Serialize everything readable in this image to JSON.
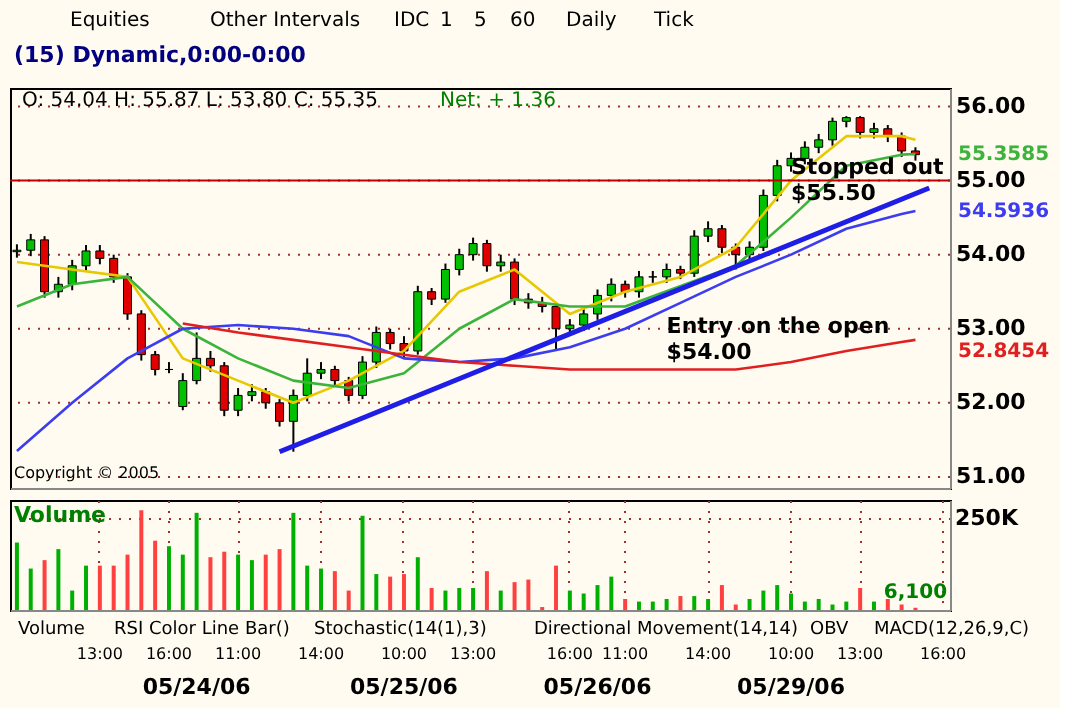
{
  "chart_data": [
    {
      "type": "candlestick",
      "title": "(15) Dynamic,0:00-0:00",
      "categories": [
        null,
        null,
        null,
        null,
        null,
        null,
        null,
        null,
        null,
        null,
        null,
        null,
        null,
        null,
        null,
        null,
        null,
        null,
        null,
        null,
        null,
        null,
        null,
        null,
        null,
        null,
        null,
        null,
        null,
        null,
        null,
        null,
        null,
        null,
        null,
        null,
        null,
        null,
        null,
        null,
        null,
        null,
        null,
        null,
        null,
        null,
        null,
        null,
        null,
        null,
        null,
        null,
        null,
        null,
        null,
        null,
        null,
        null,
        null,
        null,
        null,
        null,
        null,
        null,
        null,
        null,
        null,
        null
      ],
      "ohlc": [
        [
          54.04,
          54.14,
          53.96,
          54.06
        ],
        [
          54.06,
          54.28,
          53.98,
          54.2
        ],
        [
          54.2,
          54.25,
          53.42,
          53.5
        ],
        [
          53.5,
          53.7,
          53.42,
          53.6
        ],
        [
          53.6,
          53.93,
          53.52,
          53.85
        ],
        [
          53.85,
          54.13,
          53.77,
          54.05
        ],
        [
          54.05,
          54.13,
          53.87,
          53.95
        ],
        [
          53.95,
          54.0,
          53.62,
          53.7
        ],
        [
          53.7,
          53.75,
          53.12,
          53.2
        ],
        [
          53.2,
          53.25,
          52.57,
          52.65
        ],
        [
          52.65,
          52.7,
          52.37,
          52.45
        ],
        [
          52.45,
          52.55,
          52.4,
          52.45
        ],
        [
          51.95,
          52.4,
          51.9,
          52.3
        ],
        [
          52.3,
          52.95,
          52.25,
          52.6
        ],
        [
          52.6,
          52.7,
          52.42,
          52.5
        ],
        [
          52.5,
          52.55,
          51.82,
          51.9
        ],
        [
          51.9,
          52.2,
          51.82,
          52.1
        ],
        [
          52.1,
          52.25,
          52.02,
          52.15
        ],
        [
          52.15,
          52.2,
          51.92,
          52.0
        ],
        [
          52.0,
          52.05,
          51.68,
          51.75
        ],
        [
          51.75,
          52.18,
          51.34,
          52.1
        ],
        [
          52.1,
          52.6,
          52.02,
          52.4
        ],
        [
          52.4,
          52.55,
          52.32,
          52.45
        ],
        [
          52.45,
          52.5,
          52.22,
          52.3
        ],
        [
          52.3,
          52.35,
          52.02,
          52.1
        ],
        [
          52.1,
          52.63,
          52.05,
          52.55
        ],
        [
          52.55,
          53.03,
          52.47,
          52.95
        ],
        [
          52.95,
          53.0,
          52.72,
          52.8
        ],
        [
          52.8,
          52.9,
          52.62,
          52.7
        ],
        [
          52.7,
          53.58,
          52.65,
          53.5
        ],
        [
          53.5,
          53.55,
          53.32,
          53.4
        ],
        [
          53.4,
          53.88,
          53.35,
          53.8
        ],
        [
          53.8,
          54.08,
          53.72,
          54.0
        ],
        [
          54.0,
          54.23,
          53.92,
          54.15
        ],
        [
          54.15,
          54.2,
          53.77,
          53.85
        ],
        [
          53.85,
          54.0,
          53.77,
          53.9
        ],
        [
          53.9,
          53.95,
          53.32,
          53.4
        ],
        [
          53.4,
          53.48,
          53.27,
          53.35
        ],
        [
          53.35,
          53.43,
          53.22,
          53.3
        ],
        [
          53.3,
          53.35,
          52.7,
          53.0
        ],
        [
          53.0,
          53.13,
          52.92,
          53.05
        ],
        [
          53.05,
          53.28,
          52.97,
          53.2
        ],
        [
          53.2,
          53.53,
          53.12,
          53.45
        ],
        [
          53.45,
          53.68,
          53.37,
          53.6
        ],
        [
          53.6,
          53.65,
          53.42,
          53.5
        ],
        [
          53.5,
          53.78,
          53.42,
          53.7
        ],
        [
          53.7,
          53.78,
          53.62,
          53.7
        ],
        [
          53.7,
          53.88,
          53.62,
          53.8
        ],
        [
          53.8,
          53.85,
          53.67,
          53.75
        ],
        [
          53.75,
          54.33,
          53.7,
          54.25
        ],
        [
          54.25,
          54.45,
          54.17,
          54.35
        ],
        [
          54.35,
          54.4,
          54.02,
          54.1
        ],
        [
          54.1,
          54.15,
          53.8,
          54.0
        ],
        [
          54.0,
          54.18,
          53.92,
          54.1
        ],
        [
          54.1,
          54.88,
          54.05,
          54.8
        ],
        [
          54.8,
          55.28,
          54.72,
          55.2
        ],
        [
          55.2,
          55.38,
          55.12,
          55.3
        ],
        [
          55.3,
          55.53,
          55.22,
          55.45
        ],
        [
          55.45,
          55.63,
          55.37,
          55.55
        ],
        [
          55.55,
          55.85,
          55.47,
          55.8
        ],
        [
          55.8,
          55.87,
          55.72,
          55.85
        ],
        [
          55.85,
          55.87,
          55.57,
          55.65
        ],
        [
          55.65,
          55.78,
          55.57,
          55.7
        ],
        [
          55.7,
          55.75,
          55.52,
          55.6
        ],
        [
          55.6,
          55.65,
          55.32,
          55.4
        ],
        [
          55.4,
          55.45,
          55.27,
          55.35
        ],
        null,
        null
      ],
      "series": [
        {
          "type": "line",
          "color": "#e8c800",
          "values": [
            53.9,
            null,
            null,
            null,
            53.8,
            null,
            null,
            null,
            53.7,
            null,
            null,
            null,
            52.6,
            null,
            null,
            null,
            52.3,
            null,
            null,
            null,
            52.0,
            null,
            null,
            null,
            52.3,
            null,
            null,
            null,
            52.7,
            null,
            null,
            null,
            53.5,
            null,
            null,
            null,
            53.8,
            null,
            null,
            null,
            53.2,
            null,
            null,
            null,
            53.5,
            null,
            null,
            null,
            53.7,
            null,
            null,
            null,
            54.1,
            null,
            null,
            null,
            55.0,
            null,
            null,
            null,
            55.6,
            null,
            null,
            null,
            55.6,
            55.55,
            null,
            null
          ]
        },
        {
          "type": "line",
          "color": "#3cb43c",
          "values": [
            53.3,
            null,
            null,
            null,
            53.6,
            null,
            null,
            null,
            53.7,
            null,
            null,
            null,
            53.0,
            null,
            null,
            null,
            52.6,
            null,
            null,
            null,
            52.3,
            null,
            null,
            null,
            52.2,
            null,
            null,
            null,
            52.4,
            null,
            null,
            null,
            53.0,
            null,
            null,
            null,
            53.4,
            null,
            null,
            null,
            53.3,
            null,
            null,
            null,
            53.3,
            null,
            null,
            null,
            null,
            null,
            null,
            null,
            53.85,
            null,
            null,
            null,
            54.5,
            null,
            null,
            null,
            55.2,
            null,
            null,
            null,
            55.35,
            55.36,
            null,
            null
          ]
        },
        {
          "type": "line",
          "color": "#3c3cf0",
          "values": [
            51.35,
            null,
            null,
            null,
            52.0,
            null,
            null,
            null,
            52.6,
            null,
            null,
            null,
            53.0,
            null,
            null,
            null,
            53.05,
            null,
            null,
            null,
            53.0,
            null,
            null,
            null,
            52.9,
            null,
            null,
            null,
            52.6,
            null,
            null,
            null,
            52.55,
            null,
            null,
            null,
            52.6,
            null,
            null,
            null,
            52.75,
            null,
            null,
            null,
            53.0,
            null,
            null,
            null,
            53.35,
            null,
            null,
            null,
            53.7,
            null,
            null,
            null,
            54.0,
            null,
            null,
            null,
            54.35,
            null,
            null,
            null,
            54.55,
            54.59,
            null,
            null
          ]
        },
        {
          "type": "line",
          "color": "#e02020",
          "values": [
            null,
            null,
            null,
            null,
            null,
            null,
            null,
            null,
            null,
            null,
            null,
            null,
            53.07,
            null,
            null,
            null,
            52.95,
            null,
            null,
            null,
            52.85,
            null,
            null,
            null,
            52.75,
            null,
            null,
            null,
            52.65,
            null,
            null,
            null,
            52.55,
            null,
            null,
            null,
            52.5,
            null,
            null,
            null,
            52.45,
            null,
            null,
            null,
            52.45,
            null,
            null,
            null,
            52.45,
            null,
            null,
            null,
            52.45,
            null,
            null,
            null,
            52.55,
            null,
            null,
            null,
            52.7,
            null,
            null,
            null,
            52.82,
            52.85,
            null,
            null
          ]
        },
        {
          "type": "line",
          "color": "#1e1ee6",
          "values": [
            null,
            null,
            null,
            null,
            null,
            null,
            null,
            null,
            null,
            null,
            null,
            null,
            null,
            null,
            null,
            null,
            null,
            null,
            null,
            51.34,
            null,
            null,
            null,
            null,
            null,
            null,
            null,
            null,
            null,
            null,
            null,
            null,
            null,
            null,
            null,
            null,
            null,
            null,
            null,
            null,
            null,
            null,
            null,
            null,
            null,
            null,
            null,
            null,
            null,
            null,
            null,
            null,
            null,
            null,
            null,
            null,
            null,
            null,
            null,
            null,
            null,
            null,
            null,
            null,
            null,
            null,
            54.9,
            null
          ]
        }
      ],
      "ylim": [
        50.85,
        56.25
      ],
      "yticks": [
        {
          "value": 51,
          "label": "51.00"
        },
        {
          "value": 52,
          "label": "52.00"
        },
        {
          "value": 53,
          "label": "53.00"
        },
        {
          "value": 54,
          "label": "54.00"
        },
        {
          "value": 55,
          "label": "55.00"
        },
        {
          "value": 56,
          "label": "56.00"
        }
      ],
      "ref_lines": [
        {
          "axis": "y",
          "value": 55.0,
          "color": "#c00000"
        }
      ],
      "grid": true,
      "tick_labels": "y",
      "annotations": [
        "Equities",
        "Other Intervals",
        "IDC",
        "1",
        "5",
        "60",
        "Daily",
        "Tick",
        "O: 54.04  H: 55.87  L: 53.80  C: 55.35",
        "Net: + 1.36",
        "Copyright © 2005",
        {
          "text": "Stopped out\n$55.50",
          "y": 55.5
        },
        {
          "text": "Entry on the open\n$54.00",
          "y": 54.0
        },
        "55.3585",
        "54.5936",
        "52.8454"
      ]
    },
    {
      "type": "bar",
      "title": "Volume",
      "categories": [
        null,
        null,
        null,
        null,
        null,
        null,
        "13:00",
        null,
        null,
        null,
        null,
        "16:00",
        null,
        null,
        null,
        null,
        "11:00",
        null,
        null,
        null,
        null,
        null,
        "14:00",
        null,
        null,
        null,
        null,
        null,
        "10:00",
        null,
        null,
        null,
        null,
        "13:00",
        null,
        null,
        null,
        null,
        null,
        null,
        "16:00",
        null,
        null,
        null,
        "11:00",
        null,
        null,
        null,
        null,
        null,
        "14:00",
        null,
        null,
        null,
        null,
        null,
        "10:00",
        null,
        null,
        null,
        null,
        "13:00",
        null,
        null,
        null,
        null,
        null,
        "16:00"
      ],
      "values": [
        184000,
        113000,
        136000,
        166000,
        53000,
        121000,
        121000,
        121000,
        151000,
        272000,
        189000,
        174000,
        151000,
        265000,
        144000,
        159000,
        151000,
        136000,
        151000,
        166000,
        265000,
        121000,
        113000,
        106000,
        53000,
        257000,
        98000,
        91000,
        98000,
        144000,
        60000,
        53000,
        60000,
        60000,
        106000,
        53000,
        76000,
        83000,
        8000,
        121000,
        53000,
        45000,
        68000,
        91000,
        30000,
        23000,
        23000,
        30000,
        38000,
        38000,
        30000,
        68000,
        15000,
        30000,
        53000,
        68000,
        45000,
        23000,
        30000,
        15000,
        23000,
        60000,
        23000,
        30000,
        15000,
        6100,
        null,
        null
      ],
      "colors": [
        "#00b000",
        "#00b000",
        "#ff4040",
        "#00b000",
        "#00b000",
        "#00b000",
        "#ff4040",
        "#ff4040",
        "#ff4040",
        "#ff4040",
        "#ff4040",
        "#00b000",
        "#00b000",
        "#00b000",
        "#ff4040",
        "#ff4040",
        "#00b000",
        "#00b000",
        "#ff4040",
        "#ff4040",
        "#00b000",
        "#00b000",
        "#00b000",
        "#ff4040",
        "#ff4040",
        "#00b000",
        "#00b000",
        "#ff4040",
        "#ff4040",
        "#00b000",
        "#ff4040",
        "#00b000",
        "#00b000",
        "#00b000",
        "#ff4040",
        "#00b000",
        "#ff4040",
        "#ff4040",
        "#ff4040",
        "#ff4040",
        "#00b000",
        "#00b000",
        "#00b000",
        "#00b000",
        "#ff4040",
        "#00b000",
        "#00b000",
        "#00b000",
        "#ff4040",
        "#00b000",
        "#00b000",
        "#ff4040",
        "#ff4040",
        "#00b000",
        "#00b000",
        "#00b000",
        "#00b000",
        "#00b000",
        "#00b000",
        "#00b000",
        "#00b000",
        "#ff4040",
        "#00b000",
        "#ff4040",
        "#ff4040",
        "#ff4040",
        "#00b000",
        "#00b000"
      ],
      "value_labels": [
        null,
        null,
        null,
        null,
        null,
        null,
        null,
        null,
        null,
        null,
        null,
        null,
        null,
        null,
        null,
        null,
        null,
        null,
        null,
        null,
        null,
        null,
        null,
        null,
        null,
        null,
        null,
        null,
        null,
        null,
        null,
        null,
        null,
        null,
        null,
        null,
        null,
        null,
        null,
        null,
        null,
        null,
        null,
        null,
        null,
        null,
        null,
        null,
        null,
        null,
        null,
        null,
        null,
        null,
        null,
        null,
        null,
        null,
        null,
        null,
        null,
        null,
        null,
        null,
        null,
        "6,100",
        null,
        null
      ],
      "ylim": [
        0,
        300000
      ],
      "yticks": [
        {
          "value": 250000,
          "label": "250K"
        }
      ],
      "grid": true,
      "annotations": [
        "Volume",
        "RSI Color Line Bar()",
        "Stochastic(14(1),3)",
        "Directional Movement(14,14)",
        "OBV",
        "MACD(12,26,9,C)",
        "05/24/06",
        "05/25/06",
        "05/26/06",
        "05/29/06"
      ]
    }
  ]
}
